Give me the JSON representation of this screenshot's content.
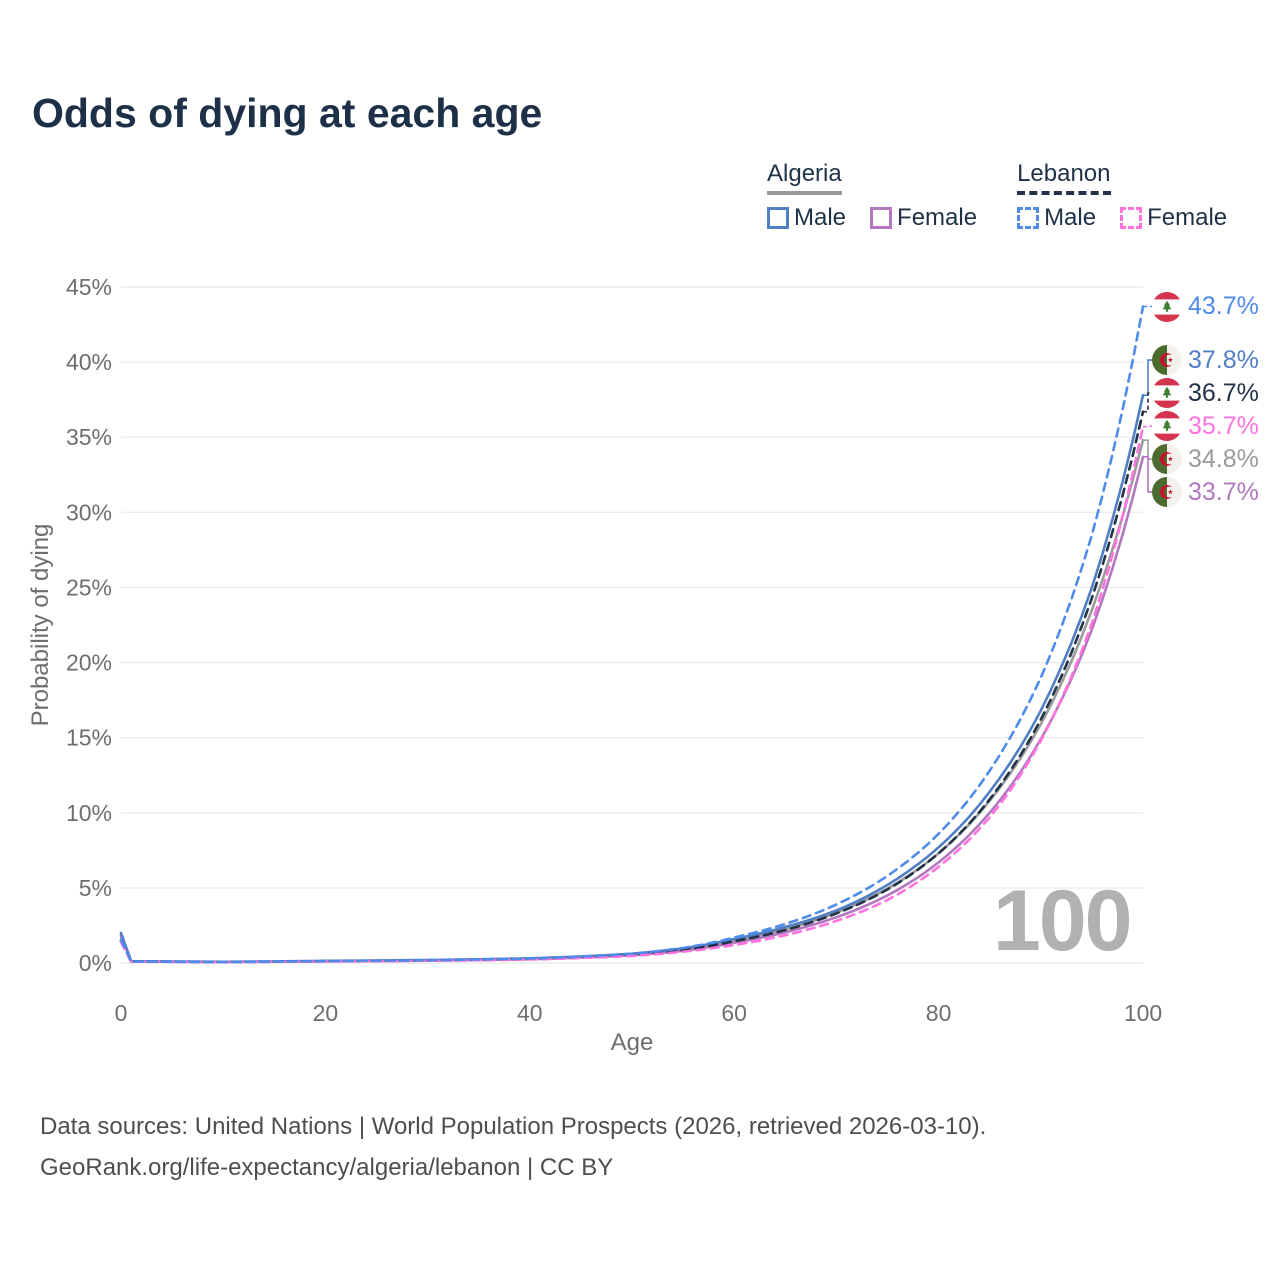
{
  "title": "Odds of dying at each age",
  "watermark": "100",
  "footer": {
    "line1": "Data sources: United Nations | World Population Prospects (2026, retrieved 2026-03-10).",
    "line2": "GeoRank.org/life-expectancy/algeria/lebanon | CC BY"
  },
  "colors": {
    "title_text": "#1e3048",
    "axis_text": "#6e6e6e",
    "gridline": "#ebebeb",
    "watermark_text": "#b1b1b4",
    "algeria_male": "#527fc4",
    "algeria_female": "#b277bf",
    "algeria_both": "#9b9b9b",
    "lebanon_male": "#4f8bea",
    "lebanon_female": "#ff72df",
    "lebanon_both": "#223349"
  },
  "legend": {
    "groups": [
      {
        "label": "Algeria",
        "line_style": "solid",
        "underline_color": "#9a9a9a",
        "items": [
          {
            "label": "Male",
            "color": "#527fc4",
            "dashed": false
          },
          {
            "label": "Female",
            "color": "#b277bf",
            "dashed": false
          }
        ]
      },
      {
        "label": "Lebanon",
        "line_style": "dashed",
        "underline_color": "#223349",
        "items": [
          {
            "label": "Male",
            "color": "#4f8bea",
            "dashed": true
          },
          {
            "label": "Female",
            "color": "#ff72df",
            "dashed": true
          }
        ]
      }
    ]
  },
  "chart_data": {
    "type": "line",
    "title": "Odds of dying at each age",
    "xlabel": "Age",
    "ylabel": "Probability of dying",
    "x_ticks": [
      0,
      20,
      40,
      60,
      80,
      100
    ],
    "y_ticks": [
      0,
      5,
      10,
      15,
      20,
      25,
      30,
      35,
      40,
      45
    ],
    "y_tick_suffix": "%",
    "xlim": [
      0,
      100
    ],
    "ylim": [
      0,
      45
    ],
    "grid": "horizontal",
    "legend_position": "top-right",
    "series": [
      {
        "name": "Lebanon Male",
        "color": "#4f8bea",
        "dashed": true,
        "flag": "lebanon",
        "end_label": "43.7%",
        "points": [
          [
            0,
            1.55
          ],
          [
            1,
            0.1
          ],
          [
            10,
            0.07
          ],
          [
            20,
            0.13
          ],
          [
            30,
            0.19
          ],
          [
            40,
            0.3
          ],
          [
            45,
            0.43
          ],
          [
            50,
            0.62
          ],
          [
            55,
            1.0
          ],
          [
            60,
            1.7
          ],
          [
            65,
            2.6
          ],
          [
            70,
            3.9
          ],
          [
            75,
            5.8
          ],
          [
            80,
            8.6
          ],
          [
            85,
            12.8
          ],
          [
            90,
            19.0
          ],
          [
            95,
            28.5
          ],
          [
            100,
            43.7
          ]
        ]
      },
      {
        "name": "Algeria Male",
        "color": "#527fc4",
        "dashed": false,
        "flag": "algeria",
        "end_label": "37.8%",
        "points": [
          [
            0,
            2.0
          ],
          [
            1,
            0.12
          ],
          [
            10,
            0.08
          ],
          [
            20,
            0.14
          ],
          [
            30,
            0.2
          ],
          [
            40,
            0.31
          ],
          [
            45,
            0.44
          ],
          [
            50,
            0.62
          ],
          [
            55,
            0.98
          ],
          [
            60,
            1.6
          ],
          [
            65,
            2.4
          ],
          [
            70,
            3.5
          ],
          [
            75,
            5.2
          ],
          [
            80,
            7.7
          ],
          [
            85,
            11.4
          ],
          [
            90,
            16.8
          ],
          [
            95,
            25.0
          ],
          [
            100,
            37.8
          ]
        ]
      },
      {
        "name": "Lebanon Both sexes",
        "color": "#223349",
        "dashed": true,
        "flag": "lebanon",
        "end_label": "36.7%",
        "points": [
          [
            0,
            1.5
          ],
          [
            1,
            0.095
          ],
          [
            10,
            0.065
          ],
          [
            20,
            0.12
          ],
          [
            30,
            0.17
          ],
          [
            40,
            0.27
          ],
          [
            45,
            0.39
          ],
          [
            50,
            0.55
          ],
          [
            55,
            0.88
          ],
          [
            60,
            1.45
          ],
          [
            65,
            2.2
          ],
          [
            70,
            3.3
          ],
          [
            75,
            4.9
          ],
          [
            80,
            7.3
          ],
          [
            85,
            10.9
          ],
          [
            90,
            16.2
          ],
          [
            95,
            24.3
          ],
          [
            100,
            36.7
          ]
        ]
      },
      {
        "name": "Lebanon Female",
        "color": "#ff72df",
        "dashed": true,
        "flag": "lebanon",
        "end_label": "35.7%",
        "points": [
          [
            0,
            1.4
          ],
          [
            1,
            0.09
          ],
          [
            10,
            0.06
          ],
          [
            20,
            0.1
          ],
          [
            30,
            0.15
          ],
          [
            40,
            0.23
          ],
          [
            45,
            0.33
          ],
          [
            50,
            0.47
          ],
          [
            55,
            0.75
          ],
          [
            60,
            1.2
          ],
          [
            65,
            1.85
          ],
          [
            70,
            2.8
          ],
          [
            75,
            4.2
          ],
          [
            80,
            6.4
          ],
          [
            85,
            9.7
          ],
          [
            90,
            14.8
          ],
          [
            95,
            22.6
          ],
          [
            100,
            35.7
          ]
        ]
      },
      {
        "name": "Algeria Both sexes",
        "color": "#9b9b9b",
        "dashed": false,
        "flag": "algeria",
        "end_label": "34.8%",
        "points": [
          [
            0,
            1.9
          ],
          [
            1,
            0.11
          ],
          [
            10,
            0.075
          ],
          [
            20,
            0.13
          ],
          [
            30,
            0.18
          ],
          [
            40,
            0.28
          ],
          [
            45,
            0.4
          ],
          [
            50,
            0.57
          ],
          [
            55,
            0.92
          ],
          [
            60,
            1.5
          ],
          [
            65,
            2.25
          ],
          [
            70,
            3.35
          ],
          [
            75,
            4.95
          ],
          [
            80,
            7.3
          ],
          [
            85,
            10.8
          ],
          [
            90,
            15.9
          ],
          [
            95,
            23.5
          ],
          [
            100,
            34.8
          ]
        ]
      },
      {
        "name": "Algeria Female",
        "color": "#b277bf",
        "dashed": false,
        "flag": "algeria",
        "end_label": "33.7%",
        "points": [
          [
            0,
            1.8
          ],
          [
            1,
            0.1
          ],
          [
            10,
            0.07
          ],
          [
            20,
            0.11
          ],
          [
            30,
            0.16
          ],
          [
            40,
            0.25
          ],
          [
            45,
            0.36
          ],
          [
            50,
            0.51
          ],
          [
            55,
            0.82
          ],
          [
            60,
            1.35
          ],
          [
            65,
            2.05
          ],
          [
            70,
            3.05
          ],
          [
            75,
            4.5
          ],
          [
            80,
            6.7
          ],
          [
            85,
            10.0
          ],
          [
            90,
            14.9
          ],
          [
            95,
            22.2
          ],
          [
            100,
            33.7
          ]
        ]
      }
    ]
  }
}
